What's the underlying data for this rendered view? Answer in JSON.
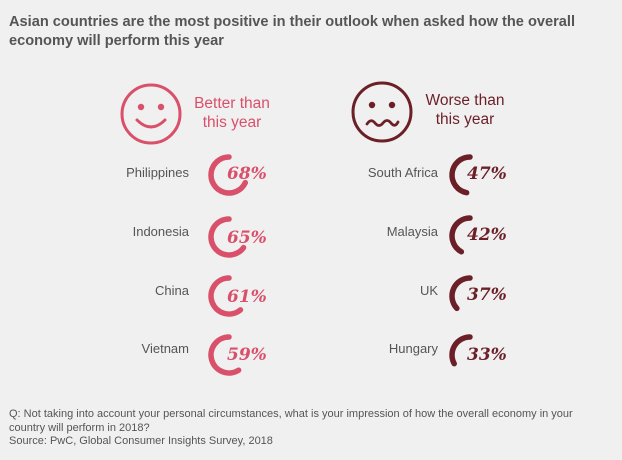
{
  "title": "Asian countries are the most positive in their outlook when asked how the overall economy will perform this year",
  "colors": {
    "positive": "#d9506a",
    "negative": "#6b1f27",
    "text": "#555555"
  },
  "chart_data": [
    {
      "type": "gauge",
      "icon": "smiley-face-icon",
      "header_line1": "Better than",
      "header_line2": "this year",
      "color": "#d9506a",
      "categories": [
        "Philippines",
        "Indonesia",
        "China",
        "Vietnam"
      ],
      "labels": [
        "68%",
        "65%",
        "61%",
        "59%"
      ],
      "values": [
        68,
        65,
        61,
        59
      ]
    },
    {
      "type": "gauge",
      "icon": "worried-face-icon",
      "header_line1": "Worse than",
      "header_line2": "this year",
      "color": "#6b1f27",
      "categories": [
        "South Africa",
        "Malaysia",
        "UK",
        "Hungary"
      ],
      "labels": [
        "47%",
        "42%",
        "37%",
        "33%"
      ],
      "values": [
        47,
        42,
        37,
        33
      ]
    }
  ],
  "footnote": {
    "question": "Q: Not taking into account your personal circumstances, what is your impression of how the overall economy in your country will perform in 2018?",
    "source": "Source: PwC, Global Consumer Insights Survey, 2018"
  }
}
